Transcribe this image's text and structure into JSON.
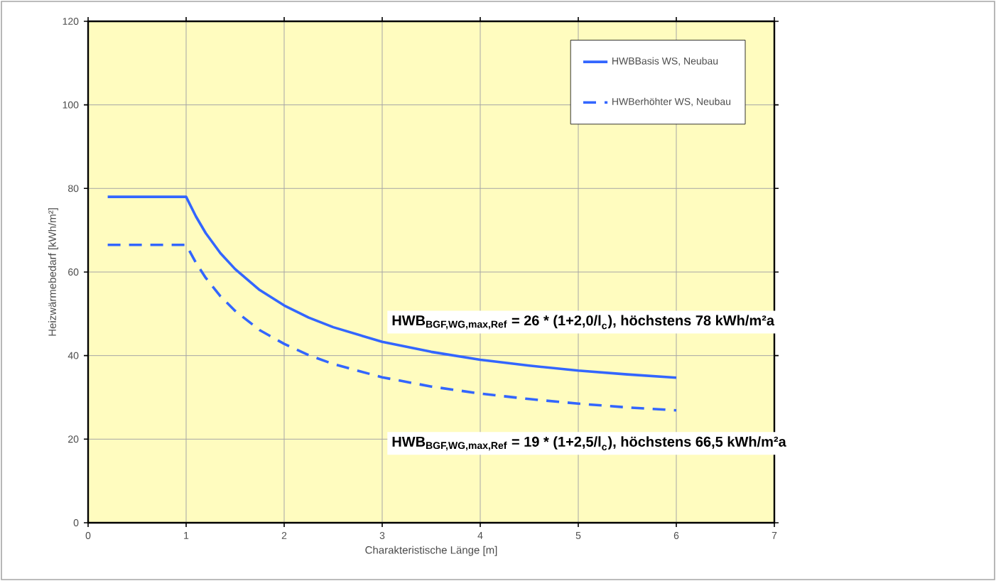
{
  "chart_data": {
    "type": "line",
    "xlabel": "Charakteristische Länge [m]",
    "ylabel": "Heizwärmebedarf [kWh/m²]",
    "x": [
      0.2,
      1,
      1.1,
      1.2,
      1.35,
      1.5,
      1.75,
      2,
      2.25,
      2.5,
      3,
      3.5,
      4,
      4.5,
      5,
      5.5,
      6
    ],
    "series": [
      {
        "name": "HWBBasis WS, Neubau",
        "color": "#3366ff",
        "line_style": "solid",
        "values": [
          78,
          78,
          73.3,
          69.3,
          64.5,
          60.7,
          55.7,
          52,
          49.1,
          46.8,
          43.3,
          40.9,
          39,
          37.6,
          36.4,
          35.5,
          34.7
        ]
      },
      {
        "name": "HWBerhöhter WS, Neubau",
        "color": "#3366ff",
        "line_style": "dashed",
        "values": [
          66.5,
          66.5,
          62.2,
          58.6,
          54.2,
          50.7,
          46.1,
          42.8,
          40.1,
          38,
          34.8,
          32.6,
          30.9,
          29.6,
          28.5,
          27.6,
          26.9
        ]
      }
    ],
    "xlim": [
      0,
      7
    ],
    "ylim": [
      0,
      120
    ],
    "xticks": [
      0,
      1,
      2,
      3,
      4,
      5,
      6,
      7
    ],
    "yticks": [
      0,
      20,
      40,
      60,
      80,
      100,
      120
    ],
    "grid": true,
    "legend": "top right",
    "marker": "none",
    "annotations": [
      "\\textbf{HWB}_{\\textbf{BGF,WG,max,Ref}}\\textbf{ = 26 * (1+2,0/l}_{\\textbf{c}}\\textbf{), höchstens 78 kWh/m²a}",
      "\\textbf{HWB}_{\\textbf{BGF,WG,max,Ref}}\\textbf{ = 19 * (1+2,5/l}_{\\textbf{c}}\\textbf{), höchstens 66,5 kWh/m²a}"
    ]
  }
}
